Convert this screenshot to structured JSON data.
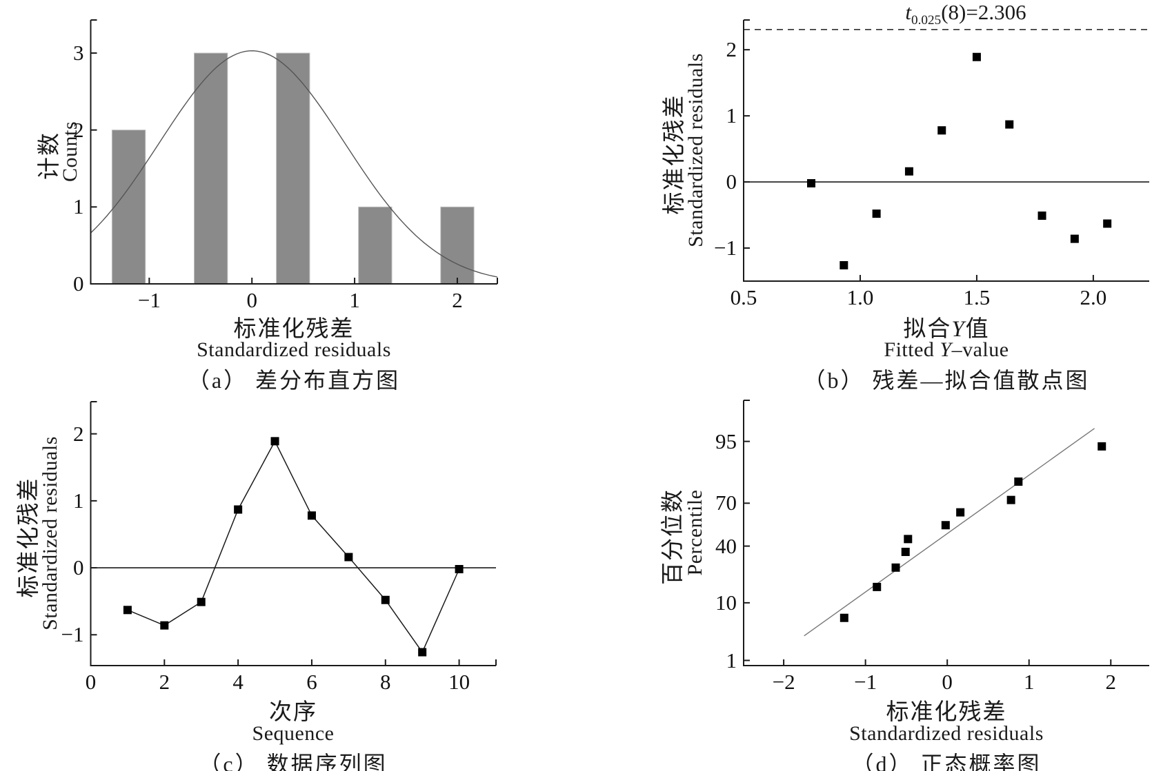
{
  "figure": {
    "background": "#ffffff",
    "ink": "#1a1a1a",
    "bar_fill": "#8a8a8a",
    "bar_edge": "#c2c2c2",
    "curve_color": "#555555",
    "marker_color": "#000000",
    "refline_color": "#777777"
  },
  "chart_data": [
    {
      "panel": "a",
      "type": "bar",
      "caption": "（a） 差分布直方图",
      "xlabel": {
        "zh": "标准化残差",
        "en": "Standardized residuals"
      },
      "ylabel": {
        "zh": "计数",
        "en": "Counts"
      },
      "xlim": [
        -1.57,
        2.39
      ],
      "ylim": [
        0,
        3.43
      ],
      "xticks": [
        -1,
        0,
        1,
        2
      ],
      "xtick_decimals": 0,
      "yticks": [
        0,
        1,
        2,
        3
      ],
      "categories": [
        -1.2,
        -0.4,
        0.4,
        1.2,
        2.0
      ],
      "values": [
        2,
        3,
        3,
        1,
        1
      ],
      "bar_width": 0.325,
      "normal_curve": {
        "amplitude": 3.03,
        "mean": 0,
        "sigma": 0.9
      }
    },
    {
      "panel": "b",
      "type": "scatter",
      "title": {
        "var": "t",
        "sub": "0.025",
        "rest": "(8)=2.306"
      },
      "caption": "（b） 残差—拟合值散点图",
      "xlabel": {
        "zh_pre": "拟合",
        "zh_var": "Y",
        "zh_post": "值",
        "en_pre": "Fitted ",
        "en_var": "Y",
        "en_post": "–value"
      },
      "ylabel": {
        "zh": "标准化残差",
        "en": "Standardized residuals"
      },
      "xlim": [
        0.5,
        2.24
      ],
      "ylim": [
        -1.5,
        2.45
      ],
      "xticks": [
        0.5,
        1.0,
        1.5,
        2.0
      ],
      "xtick_decimals": 1,
      "yticks": [
        -1,
        0,
        1,
        2
      ],
      "zero_line": 0,
      "dashed_line": 2.306,
      "points": [
        [
          0.79,
          -0.02
        ],
        [
          0.93,
          -1.26
        ],
        [
          1.07,
          -0.48
        ],
        [
          1.21,
          0.16
        ],
        [
          1.35,
          0.78
        ],
        [
          1.5,
          1.89
        ],
        [
          1.64,
          0.87
        ],
        [
          1.78,
          -0.51
        ],
        [
          1.92,
          -0.86
        ],
        [
          2.06,
          -0.63
        ]
      ]
    },
    {
      "panel": "c",
      "type": "line",
      "caption": "（c） 数据序列图",
      "xlabel": {
        "zh": "次序",
        "en": "Sequence"
      },
      "ylabel": {
        "zh": "标准化残差",
        "en": "Standardized residuals"
      },
      "xlim": [
        0,
        11
      ],
      "ylim": [
        -1.46,
        2.48
      ],
      "xticks": [
        0,
        2,
        4,
        6,
        8,
        10
      ],
      "xtick_decimals": 0,
      "yticks": [
        -1,
        0,
        1,
        2
      ],
      "zero_line": 0,
      "points": [
        [
          1,
          -0.63
        ],
        [
          2,
          -0.86
        ],
        [
          3,
          -0.51
        ],
        [
          4,
          0.87
        ],
        [
          5,
          1.89
        ],
        [
          6,
          0.78
        ],
        [
          7,
          0.16
        ],
        [
          8,
          -0.48
        ],
        [
          9,
          -1.26
        ],
        [
          10,
          -0.02
        ]
      ]
    },
    {
      "panel": "d",
      "type": "scatter",
      "caption": "（d） 正态概率图",
      "xlabel": {
        "zh": "标准化残差",
        "en": "Standardized residuals"
      },
      "ylabel": {
        "zh": "百分位数",
        "en": "Percentile"
      },
      "xlim": [
        -2.49,
        2.47
      ],
      "y_scale": "probit",
      "ylim_z": [
        -2.42,
        2.39
      ],
      "xticks": [
        -2,
        -1,
        0,
        1,
        2
      ],
      "xtick_decimals": 0,
      "yticks_percent": [
        1,
        10,
        40,
        70,
        95
      ],
      "ref_line": {
        "x1": -1.75,
        "p1": 3.0,
        "x2": 1.8,
        "p2": 97.0
      },
      "points_percentile": [
        [
          -1.26,
          6
        ],
        [
          -0.86,
          16
        ],
        [
          -0.63,
          26
        ],
        [
          -0.51,
          36
        ],
        [
          -0.48,
          45
        ],
        [
          -0.02,
          55
        ],
        [
          0.16,
          64
        ],
        [
          0.78,
          72
        ],
        [
          0.87,
          82
        ],
        [
          1.89,
          94
        ]
      ]
    }
  ]
}
